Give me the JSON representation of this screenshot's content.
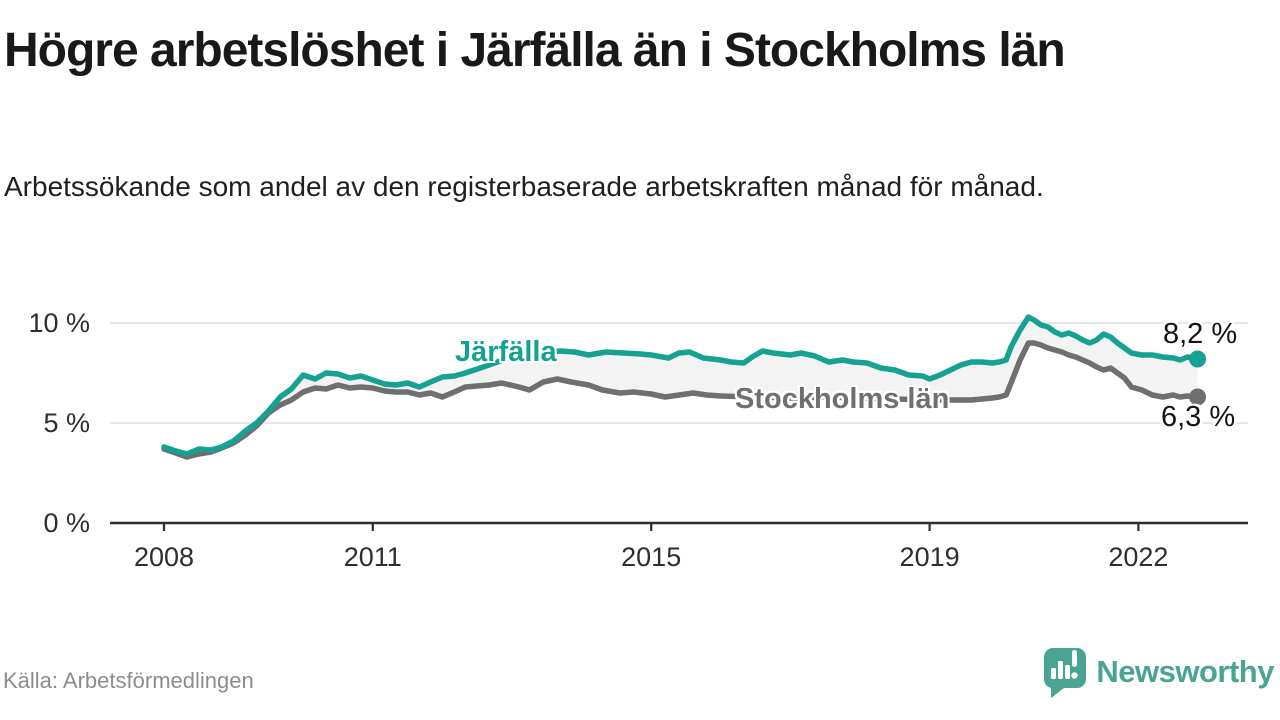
{
  "header": {
    "title": "Högre arbetslöshet i Järfälla än i Stockholms län",
    "subtitle": "Arbetssökande som andel av den registerbaserade arbetskraften månad för månad."
  },
  "footer": {
    "source": "Källa: Arbetsförmedlingen",
    "brand": "Newsworthy"
  },
  "colors": {
    "accent_teal": "#15a292",
    "line_gray": "#6f6f6f",
    "fill_between": "#f3f3f3",
    "gridline": "#dedede",
    "axis": "#2e2e2e",
    "text_dark": "#191919",
    "source_gray": "#8c8c8c",
    "logo_teal": "#4aa492"
  },
  "chart_data": {
    "type": "line",
    "title": "Högre arbetslöshet i Järfälla än i Stockholms län",
    "subtitle": "Arbetssökande som andel av den registerbaserade arbetskraften månad för månad.",
    "xlabel": "",
    "ylabel": "",
    "grid": "horizontal",
    "legend_position": "inline-labels",
    "xlim": [
      2007.2,
      2023.6
    ],
    "ylim": [
      0,
      10.7
    ],
    "y_ticks": [
      {
        "label": "10 %",
        "value": 10
      },
      {
        "label": "5 %",
        "value": 5
      },
      {
        "label": "0 %",
        "value": 0
      }
    ],
    "x_ticks": [
      {
        "label": "2008",
        "value": 2008
      },
      {
        "label": "2011",
        "value": 2011
      },
      {
        "label": "2015",
        "value": 2015
      },
      {
        "label": "2019",
        "value": 2019
      },
      {
        "label": "2022",
        "value": 2022
      }
    ],
    "series": [
      {
        "name": "Järfälla",
        "color": "#15a292",
        "end_label": "8,2 %",
        "end_value": 8.2,
        "points": [
          [
            2008.0,
            3.8
          ],
          [
            2008.17,
            3.6
          ],
          [
            2008.33,
            3.45
          ],
          [
            2008.5,
            3.7
          ],
          [
            2008.67,
            3.65
          ],
          [
            2008.83,
            3.8
          ],
          [
            2009.0,
            4.1
          ],
          [
            2009.17,
            4.6
          ],
          [
            2009.33,
            5.0
          ],
          [
            2009.5,
            5.6
          ],
          [
            2009.67,
            6.3
          ],
          [
            2009.83,
            6.7
          ],
          [
            2010.0,
            7.4
          ],
          [
            2010.17,
            7.2
          ],
          [
            2010.33,
            7.5
          ],
          [
            2010.5,
            7.45
          ],
          [
            2010.67,
            7.25
          ],
          [
            2010.83,
            7.35
          ],
          [
            2011.0,
            7.15
          ],
          [
            2011.17,
            6.95
          ],
          [
            2011.33,
            6.9
          ],
          [
            2011.5,
            7.0
          ],
          [
            2011.67,
            6.8
          ],
          [
            2011.83,
            7.05
          ],
          [
            2012.0,
            7.3
          ],
          [
            2012.17,
            7.35
          ],
          [
            2012.33,
            7.5
          ],
          [
            2012.5,
            7.7
          ],
          [
            2012.67,
            7.9
          ],
          [
            2012.83,
            8.1
          ],
          [
            2013.0,
            8.3
          ],
          [
            2013.25,
            8.45
          ],
          [
            2013.5,
            8.55
          ],
          [
            2013.7,
            8.6
          ],
          [
            2013.9,
            8.55
          ],
          [
            2014.1,
            8.4
          ],
          [
            2014.35,
            8.55
          ],
          [
            2014.6,
            8.5
          ],
          [
            2014.85,
            8.45
          ],
          [
            2015.0,
            8.4
          ],
          [
            2015.25,
            8.25
          ],
          [
            2015.4,
            8.5
          ],
          [
            2015.55,
            8.55
          ],
          [
            2015.75,
            8.25
          ],
          [
            2016.0,
            8.15
          ],
          [
            2016.15,
            8.05
          ],
          [
            2016.33,
            8.0
          ],
          [
            2016.45,
            8.3
          ],
          [
            2016.6,
            8.6
          ],
          [
            2016.75,
            8.5
          ],
          [
            2017.0,
            8.4
          ],
          [
            2017.15,
            8.5
          ],
          [
            2017.35,
            8.35
          ],
          [
            2017.55,
            8.05
          ],
          [
            2017.75,
            8.15
          ],
          [
            2017.9,
            8.05
          ],
          [
            2018.1,
            8.0
          ],
          [
            2018.3,
            7.75
          ],
          [
            2018.5,
            7.65
          ],
          [
            2018.7,
            7.4
          ],
          [
            2018.9,
            7.35
          ],
          [
            2019.0,
            7.2
          ],
          [
            2019.15,
            7.4
          ],
          [
            2019.3,
            7.65
          ],
          [
            2019.45,
            7.9
          ],
          [
            2019.6,
            8.05
          ],
          [
            2019.75,
            8.05
          ],
          [
            2019.9,
            8.0
          ],
          [
            2020.0,
            8.05
          ],
          [
            2020.1,
            8.15
          ],
          [
            2020.17,
            8.8
          ],
          [
            2020.3,
            9.65
          ],
          [
            2020.42,
            10.3
          ],
          [
            2020.5,
            10.15
          ],
          [
            2020.6,
            9.9
          ],
          [
            2020.7,
            9.8
          ],
          [
            2020.8,
            9.55
          ],
          [
            2020.9,
            9.4
          ],
          [
            2021.0,
            9.5
          ],
          [
            2021.1,
            9.35
          ],
          [
            2021.2,
            9.15
          ],
          [
            2021.3,
            9.0
          ],
          [
            2021.4,
            9.15
          ],
          [
            2021.5,
            9.45
          ],
          [
            2021.6,
            9.3
          ],
          [
            2021.7,
            9.0
          ],
          [
            2021.8,
            8.75
          ],
          [
            2021.9,
            8.5
          ],
          [
            2022.05,
            8.4
          ],
          [
            2022.2,
            8.4
          ],
          [
            2022.35,
            8.3
          ],
          [
            2022.5,
            8.25
          ],
          [
            2022.6,
            8.15
          ],
          [
            2022.7,
            8.3
          ],
          [
            2022.85,
            8.2
          ]
        ]
      },
      {
        "name": "Stockholms län",
        "color": "#6f6f6f",
        "end_label": "6,3 %",
        "end_value": 6.3,
        "points": [
          [
            2008.0,
            3.7
          ],
          [
            2008.17,
            3.5
          ],
          [
            2008.33,
            3.3
          ],
          [
            2008.5,
            3.45
          ],
          [
            2008.67,
            3.55
          ],
          [
            2008.83,
            3.75
          ],
          [
            2009.0,
            4.0
          ],
          [
            2009.17,
            4.4
          ],
          [
            2009.33,
            4.85
          ],
          [
            2009.5,
            5.5
          ],
          [
            2009.67,
            5.9
          ],
          [
            2009.83,
            6.15
          ],
          [
            2010.0,
            6.55
          ],
          [
            2010.17,
            6.75
          ],
          [
            2010.33,
            6.7
          ],
          [
            2010.5,
            6.9
          ],
          [
            2010.67,
            6.75
          ],
          [
            2010.83,
            6.8
          ],
          [
            2011.0,
            6.75
          ],
          [
            2011.17,
            6.6
          ],
          [
            2011.33,
            6.55
          ],
          [
            2011.5,
            6.55
          ],
          [
            2011.67,
            6.4
          ],
          [
            2011.83,
            6.5
          ],
          [
            2012.0,
            6.3
          ],
          [
            2012.17,
            6.55
          ],
          [
            2012.33,
            6.8
          ],
          [
            2012.5,
            6.85
          ],
          [
            2012.67,
            6.9
          ],
          [
            2012.85,
            7.0
          ],
          [
            2013.1,
            6.8
          ],
          [
            2013.25,
            6.65
          ],
          [
            2013.45,
            7.05
          ],
          [
            2013.65,
            7.2
          ],
          [
            2013.85,
            7.05
          ],
          [
            2014.1,
            6.9
          ],
          [
            2014.3,
            6.65
          ],
          [
            2014.55,
            6.5
          ],
          [
            2014.75,
            6.55
          ],
          [
            2015.0,
            6.45
          ],
          [
            2015.2,
            6.3
          ],
          [
            2015.4,
            6.4
          ],
          [
            2015.6,
            6.5
          ],
          [
            2015.8,
            6.4
          ],
          [
            2016.0,
            6.35
          ],
          [
            2016.5,
            6.3
          ],
          [
            2017.0,
            6.25
          ],
          [
            2017.5,
            6.3
          ],
          [
            2018.0,
            6.25
          ],
          [
            2018.5,
            6.2
          ],
          [
            2019.0,
            6.15
          ],
          [
            2019.3,
            6.15
          ],
          [
            2019.6,
            6.15
          ],
          [
            2019.9,
            6.25
          ],
          [
            2020.0,
            6.3
          ],
          [
            2020.1,
            6.4
          ],
          [
            2020.17,
            7.0
          ],
          [
            2020.3,
            8.15
          ],
          [
            2020.42,
            9.0
          ],
          [
            2020.5,
            9.0
          ],
          [
            2020.6,
            8.9
          ],
          [
            2020.7,
            8.75
          ],
          [
            2020.8,
            8.65
          ],
          [
            2020.9,
            8.55
          ],
          [
            2021.0,
            8.4
          ],
          [
            2021.1,
            8.3
          ],
          [
            2021.2,
            8.15
          ],
          [
            2021.3,
            8.0
          ],
          [
            2021.4,
            7.8
          ],
          [
            2021.5,
            7.65
          ],
          [
            2021.6,
            7.75
          ],
          [
            2021.7,
            7.5
          ],
          [
            2021.8,
            7.25
          ],
          [
            2021.9,
            6.8
          ],
          [
            2022.05,
            6.65
          ],
          [
            2022.2,
            6.4
          ],
          [
            2022.35,
            6.3
          ],
          [
            2022.5,
            6.4
          ],
          [
            2022.6,
            6.3
          ],
          [
            2022.7,
            6.35
          ],
          [
            2022.85,
            6.3
          ]
        ]
      }
    ]
  }
}
